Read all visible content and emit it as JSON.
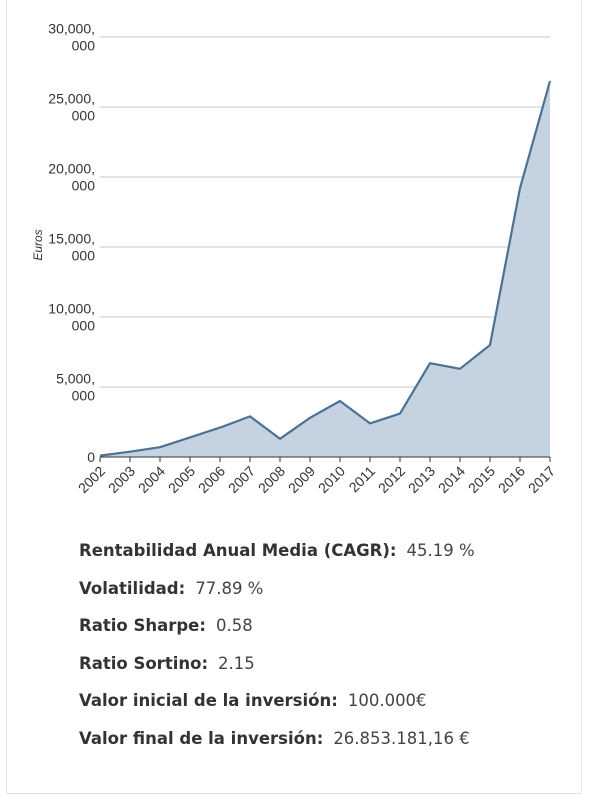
{
  "chart_data": {
    "type": "area",
    "ylabel": "Euros",
    "xlabel": "",
    "x": [
      "2002",
      "2003",
      "2004",
      "2005",
      "2006",
      "2007",
      "2008",
      "2009",
      "2010",
      "2011",
      "2012",
      "2013",
      "2014",
      "2015",
      "2016",
      "2017"
    ],
    "series": [
      {
        "values": [
          100000,
          380000,
          700000,
          1400000,
          2100000,
          2900000,
          1300000,
          2800000,
          4000000,
          2400000,
          3100000,
          6700000,
          6300000,
          8000000,
          19200000,
          26853181
        ]
      }
    ],
    "ylim": [
      0,
      30000000
    ],
    "yticks": [
      {
        "value": 0,
        "label": [
          "0"
        ]
      },
      {
        "value": 5000000,
        "label": [
          "5,000,",
          "000"
        ]
      },
      {
        "value": 10000000,
        "label": [
          "10,000,",
          "000"
        ]
      },
      {
        "value": 15000000,
        "label": [
          "15,000,",
          "000"
        ]
      },
      {
        "value": 20000000,
        "label": [
          "20,000,",
          "000"
        ]
      },
      {
        "value": 25000000,
        "label": [
          "25,000,",
          "000"
        ]
      },
      {
        "value": 30000000,
        "label": [
          "30,000,",
          "000"
        ]
      }
    ],
    "grid": true,
    "legend": "none",
    "colors": {
      "line": "#4b7194",
      "fill": "#c5d3e0",
      "grid": "#c8c8c8",
      "axis": "#333333"
    }
  },
  "stats": [
    {
      "label": "Rentabilidad Anual Media (CAGR):",
      "value": "45.19 %"
    },
    {
      "label": "Volatilidad:",
      "value": "77.89 %"
    },
    {
      "label": "Ratio Sharpe:",
      "value": "0.58"
    },
    {
      "label": "Ratio Sortino:",
      "value": "2.15"
    },
    {
      "label": "Valor inicial de la inversión:",
      "value": "100.000€"
    },
    {
      "label": "Valor final de la inversión:",
      "value": "26.853.181,16 €"
    }
  ]
}
